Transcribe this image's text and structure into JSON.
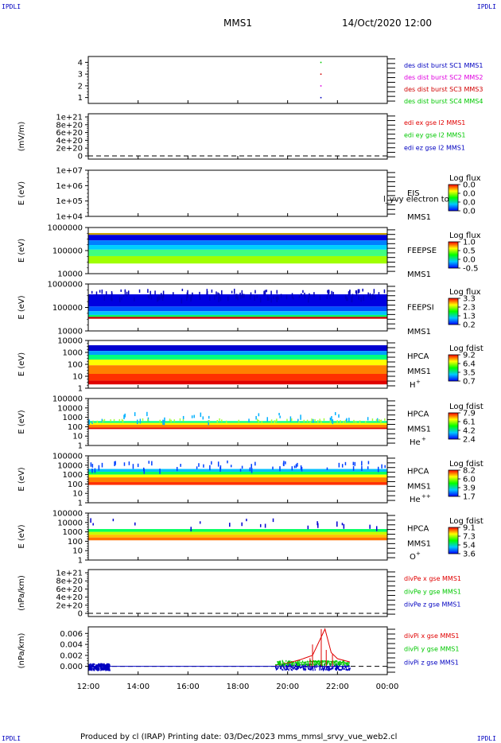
{
  "corner_label": "IPDLI",
  "header": {
    "left": "MMS1",
    "right": "14/Oct/2020 12:00"
  },
  "footer": "Produced by cl (IRAP)   Printing date: 03/Dec/2023   mms_mmsl_srvy_vue_web2.cl",
  "x_ticks": [
    "12:00",
    "14:00",
    "16:00",
    "18:00",
    "20:00",
    "22:00",
    "00:00"
  ],
  "colors": {
    "red": "#e00000",
    "green": "#00c800",
    "blue": "#0000c0",
    "magenta": "#e000e0",
    "dark_red": "#d00000"
  },
  "chart_data": [
    {
      "id": "des_dist",
      "type": "scatter",
      "ylim": [
        0.5,
        4.5
      ],
      "y_ticks": [
        "4",
        "3",
        "2",
        "1"
      ],
      "ylabel": "",
      "legend": [
        {
          "text": "des dist burst SC1 MMS1",
          "color": "#0000c0"
        },
        {
          "text": "des dist burst SC2 MMS2",
          "color": "#e000e0"
        },
        {
          "text": "des dist burst SC3 MMS3",
          "color": "#d00000"
        },
        {
          "text": "des dist burst SC4 MMS4",
          "color": "#00c800"
        }
      ],
      "series": [
        {
          "name": "des dist burst SC1 MMS1",
          "x": [
            "21:20"
          ],
          "y": [
            1
          ]
        },
        {
          "name": "des dist burst SC2 MMS2",
          "x": [
            "21:20"
          ],
          "y": [
            2
          ]
        },
        {
          "name": "des dist burst SC3 MMS3",
          "x": [
            "21:20"
          ],
          "y": [
            3
          ]
        },
        {
          "name": "des dist burst SC4 MMS4",
          "x": [
            "21:20"
          ],
          "y": [
            4
          ]
        }
      ]
    },
    {
      "id": "edi",
      "type": "line",
      "ylim": [
        0,
        1e+21
      ],
      "y_ticks": [
        "1e+21",
        "8e+20",
        "6e+20",
        "4e+20",
        "2e+20",
        "0"
      ],
      "ylabel": "(mV/m)",
      "legend": [
        {
          "text": "edi ex gse l2 MMS1",
          "color": "#e00000"
        },
        {
          "text": "edi ey gse l2 MMS1",
          "color": "#00c800"
        },
        {
          "text": "edi ez gse l2 MMS1",
          "color": "#0000c0"
        }
      ]
    },
    {
      "id": "eis",
      "type": "heatmap",
      "ylabel": "E (eV)",
      "y_ticks": [
        "1e+07",
        "1e+06",
        "1e+05",
        "1e+04"
      ],
      "instrument": "EIS",
      "sublabel": "MMS1",
      "overlay_text": "l_yvy electron to",
      "colorbar": {
        "title": "Log flux",
        "ticks": [
          "0.0",
          "0.0",
          "0.0",
          "0.0"
        ]
      }
    },
    {
      "id": "feepse",
      "type": "heatmap",
      "ylabel": "E (eV)",
      "y_ticks": [
        "1000000",
        "100000",
        "10000"
      ],
      "instrument": "FEEPSE",
      "sublabel": "MMS1",
      "colorbar": {
        "title": "Log flux",
        "ticks": [
          "1.0",
          "0.5",
          "0.0",
          "-0.5"
        ]
      }
    },
    {
      "id": "feepsi",
      "type": "heatmap",
      "ylabel": "E (eV)",
      "y_ticks": [
        "1000000",
        "100000",
        "10000"
      ],
      "instrument": "FEEPSI",
      "sublabel": "MMS1",
      "colorbar": {
        "title": "Log flux",
        "ticks": [
          "3.3",
          "2.3",
          "1.3",
          "0.2"
        ]
      }
    },
    {
      "id": "hpca_h",
      "type": "heatmap",
      "ylabel": "E (eV)",
      "y_ticks": [
        "10000",
        "1000",
        "100",
        "10",
        "1"
      ],
      "instrument": "HPCA",
      "sublabel": "MMS1",
      "species": "H",
      "charge": "+",
      "colorbar": {
        "title": "Log fdist",
        "ticks": [
          "9.2",
          "6.4",
          "3.5",
          "0.7"
        ]
      }
    },
    {
      "id": "hpca_he",
      "type": "heatmap",
      "ylabel": "E (eV)",
      "y_ticks": [
        "100000",
        "10000",
        "1000",
        "100",
        "10",
        "1"
      ],
      "instrument": "HPCA",
      "sublabel": "MMS1",
      "species": "He",
      "charge": "+",
      "colorbar": {
        "title": "Log fdist",
        "ticks": [
          "7.9",
          "6.1",
          "4.2",
          "2.4"
        ]
      }
    },
    {
      "id": "hpca_hepp",
      "type": "heatmap",
      "ylabel": "E (eV)",
      "y_ticks": [
        "100000",
        "10000",
        "1000",
        "100",
        "10",
        "1"
      ],
      "instrument": "HPCA",
      "sublabel": "MMS1",
      "species": "He",
      "charge": "++",
      "colorbar": {
        "title": "Log fdist",
        "ticks": [
          "8.2",
          "6.0",
          "3.9",
          "1.7"
        ]
      }
    },
    {
      "id": "hpca_o",
      "type": "heatmap",
      "ylabel": "E (eV)",
      "y_ticks": [
        "100000",
        "10000",
        "1000",
        "100",
        "10",
        "1"
      ],
      "instrument": "HPCA",
      "sublabel": "MMS1",
      "species": "O",
      "charge": "+",
      "colorbar": {
        "title": "Log fdist",
        "ticks": [
          "9.1",
          "7.3",
          "5.4",
          "3.6"
        ]
      }
    },
    {
      "id": "divpe",
      "type": "line",
      "ylim": [
        0,
        1e+21
      ],
      "y_ticks": [
        "1e+21",
        "8e+20",
        "6e+20",
        "4e+20",
        "2e+20",
        "0"
      ],
      "ylabel": "(nPa/km)",
      "legend": [
        {
          "text": "divPe x gse MMS1",
          "color": "#e00000"
        },
        {
          "text": "divPe y gse MMS1",
          "color": "#00c800"
        },
        {
          "text": "divPe z gse MMS1",
          "color": "#0000c0"
        }
      ]
    },
    {
      "id": "divpi",
      "type": "line",
      "ylim": [
        -0.0015,
        0.0072
      ],
      "y_ticks": [
        "0.006",
        "0.004",
        "0.002",
        "0.000"
      ],
      "ylabel": "(nPa/km)",
      "legend": [
        {
          "text": "divPi x gse MMS1",
          "color": "#e00000"
        },
        {
          "text": "divPi y gse MMS1",
          "color": "#00c800"
        },
        {
          "text": "divPi z gse MMS1",
          "color": "#0000c0"
        }
      ],
      "series": [
        {
          "name": "divPi x gse MMS1",
          "x": [
            "19:30",
            "20:00",
            "20:30",
            "21:00",
            "21:30",
            "21:45",
            "22:00",
            "22:30"
          ],
          "y": [
            0.0002,
            0.0006,
            0.0012,
            0.002,
            0.0068,
            0.0025,
            0.0014,
            0.0008
          ]
        },
        {
          "name": "divPi y gse MMS1",
          "x": [
            "19:30",
            "20:00",
            "20:30",
            "21:00",
            "21:30",
            "22:00",
            "22:30"
          ],
          "y": [
            0.0003,
            0.0005,
            0.0007,
            0.0009,
            0.001,
            0.0008,
            0.0006
          ]
        },
        {
          "name": "divPi z gse MMS1",
          "x": [
            "12:00",
            "12:50",
            "19:30",
            "20:30",
            "21:30",
            "22:30"
          ],
          "y": [
            0.0,
            0.0,
            0.0,
            -0.0001,
            0.0,
            0.0
          ]
        }
      ]
    }
  ]
}
